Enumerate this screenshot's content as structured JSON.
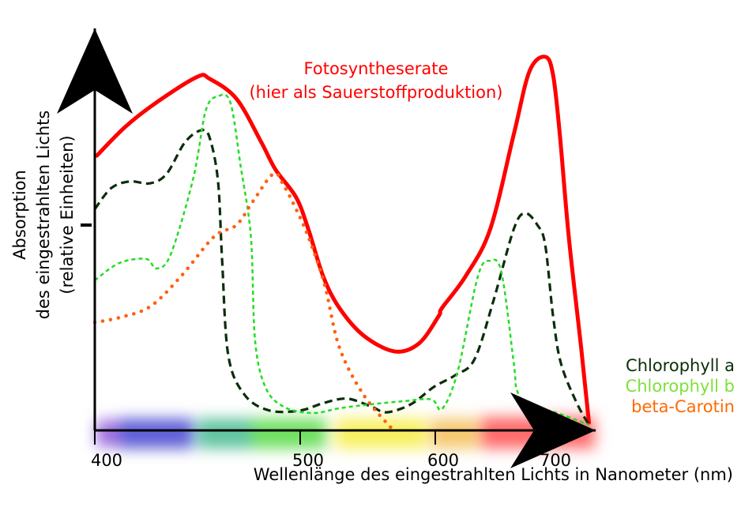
{
  "chart_data": {
    "type": "line",
    "title": "",
    "xlabel": "Wellenlänge des eingestrahlten Lichts in Nanometer (nm)",
    "ylabel": [
      "Absorption",
      "des eingestrahlten Lichts",
      "(relative Einheiten)"
    ],
    "x_ticks": [
      400,
      500,
      600,
      700
    ],
    "xlim": [
      400,
      740
    ],
    "ylim": [
      0,
      100
    ],
    "annotation": [
      "Fotosyntheserate",
      "(hier als Sauerstoffproduktion)"
    ],
    "legend_placement": "right",
    "series": [
      {
        "name": "Fotosyntheserate",
        "color": "#ff0000",
        "style": "solid",
        "points": [
          [
            401,
            74.5
          ],
          [
            415,
            82.4
          ],
          [
            431,
            89.3
          ],
          [
            450,
            95.9
          ],
          [
            456,
            95.3
          ],
          [
            469,
            89.9
          ],
          [
            481,
            78.2
          ],
          [
            488,
            70.7
          ],
          [
            498,
            63.2
          ],
          [
            506,
            54.6
          ],
          [
            517,
            41.8
          ],
          [
            529,
            33.2
          ],
          [
            547,
            25.7
          ],
          [
            570,
            21.4
          ],
          [
            588,
            23.6
          ],
          [
            603,
            31
          ],
          [
            606,
            33.2
          ],
          [
            627,
            41.8
          ],
          [
            649,
            54.6
          ],
          [
            670,
            80.3
          ],
          [
            684,
            97.4
          ],
          [
            698,
            101.3
          ],
          [
            705,
            96.4
          ],
          [
            711,
            80.3
          ],
          [
            719,
            52.5
          ],
          [
            730,
            22.5
          ],
          [
            737,
            2.1
          ]
        ]
      },
      {
        "name": "Chlorophyll a",
        "color": "#0a2e0a",
        "style": "dashed",
        "points": [
          [
            400,
            60
          ],
          [
            408,
            65.7
          ],
          [
            417,
            67.5
          ],
          [
            427,
            67
          ],
          [
            435,
            69.6
          ],
          [
            444,
            78.2
          ],
          [
            452,
            81.4
          ],
          [
            456,
            79.2
          ],
          [
            460,
            67.5
          ],
          [
            462,
            46
          ],
          [
            465,
            20.3
          ],
          [
            473,
            9.6
          ],
          [
            485,
            5.4
          ],
          [
            500,
            5.4
          ],
          [
            518,
            7.5
          ],
          [
            535,
            8.6
          ],
          [
            553,
            6.4
          ],
          [
            564,
            4.9
          ],
          [
            582,
            7.1
          ],
          [
            599,
            11.8
          ],
          [
            618,
            15
          ],
          [
            635,
            19.3
          ],
          [
            652,
            35.3
          ],
          [
            670,
            54.6
          ],
          [
            680,
            58.9
          ],
          [
            691,
            55.7
          ],
          [
            698,
            50.3
          ],
          [
            705,
            31
          ],
          [
            712,
            18.2
          ],
          [
            726,
            7.5
          ],
          [
            737,
            1.5
          ]
        ]
      },
      {
        "name": "Chlorophyll b",
        "color": "#22dd22",
        "style": "dotted",
        "points": [
          [
            400,
            40.7
          ],
          [
            412,
            45.4
          ],
          [
            425,
            46.5
          ],
          [
            430,
            43.9
          ],
          [
            437,
            47.8
          ],
          [
            448,
            68.5
          ],
          [
            454,
            86.7
          ],
          [
            460,
            90.6
          ],
          [
            466,
            88.9
          ],
          [
            471,
            71.7
          ],
          [
            476,
            52.5
          ],
          [
            478,
            24.6
          ],
          [
            483,
            11.8
          ],
          [
            492,
            6.4
          ],
          [
            509,
            4.7
          ],
          [
            529,
            6
          ],
          [
            553,
            7.1
          ],
          [
            576,
            7.9
          ],
          [
            597,
            8.4
          ],
          [
            606,
            5.8
          ],
          [
            620,
            16
          ],
          [
            638,
            41.8
          ],
          [
            649,
            46
          ],
          [
            659,
            42.8
          ],
          [
            670,
            18.2
          ],
          [
            673,
            10.7
          ],
          [
            685,
            4.9
          ],
          [
            701,
            5.4
          ],
          [
            737,
            1.5
          ]
        ]
      },
      {
        "name": "beta-Carotin",
        "color": "#ff6010",
        "style": "dotted-round",
        "points": [
          [
            400,
            29.3
          ],
          [
            412,
            30.6
          ],
          [
            427,
            33.6
          ],
          [
            442,
            41.8
          ],
          [
            458,
            52.5
          ],
          [
            469,
            55.7
          ],
          [
            477,
            62.1
          ],
          [
            487,
            69.6
          ],
          [
            492,
            66.4
          ],
          [
            498,
            60
          ],
          [
            506,
            52.5
          ],
          [
            518,
            39.6
          ],
          [
            529,
            22.5
          ],
          [
            547,
            9.6
          ],
          [
            568,
            0.4
          ]
        ]
      }
    ]
  }
}
